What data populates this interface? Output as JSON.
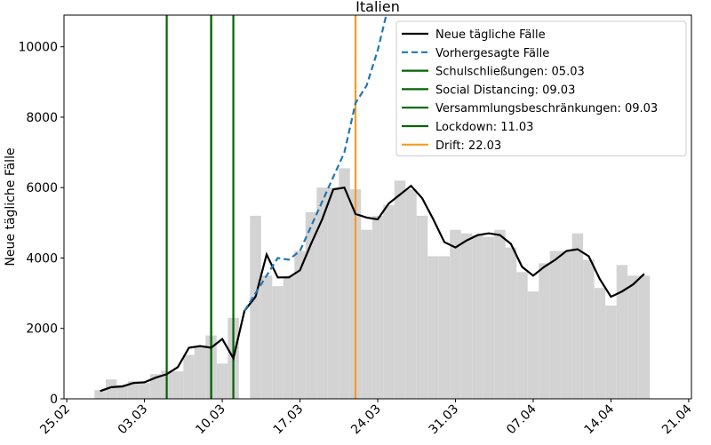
{
  "chart_data": {
    "type": "bar_line",
    "title": "Italien",
    "ylabel": "Neue tägliche Fälle",
    "categories": [
      "25.02",
      "26.02",
      "27.02",
      "28.02",
      "29.02",
      "01.03",
      "02.03",
      "03.03",
      "04.03",
      "05.03",
      "06.03",
      "07.03",
      "08.03",
      "09.03",
      "10.03",
      "11.03",
      "12.03",
      "13.03",
      "14.03",
      "15.03",
      "16.03",
      "17.03",
      "18.03",
      "19.03",
      "20.03",
      "21.03",
      "22.03",
      "23.03",
      "24.03",
      "25.03",
      "26.03",
      "27.03",
      "28.03",
      "29.03",
      "30.03",
      "31.03",
      "01.04",
      "02.04",
      "03.04",
      "04.04",
      "05.04",
      "06.04",
      "07.04",
      "08.04",
      "09.04",
      "10.04",
      "11.04",
      "12.04",
      "13.04",
      "14.04",
      "15.04",
      "16.04",
      "17.04",
      "18.04",
      "19.04",
      "20.04",
      "21.04"
    ],
    "bars": {
      "color": "#d3d3d3",
      "values": [
        null,
        null,
        null,
        250,
        550,
        400,
        500,
        450,
        700,
        800,
        780,
        1250,
        1500,
        1800,
        1000,
        2300,
        null,
        5200,
        3500,
        3200,
        3500,
        4200,
        5300,
        6000,
        6000,
        6550,
        5950,
        4800,
        5200,
        5500,
        6200,
        5950,
        5200,
        4050,
        4050,
        4800,
        4700,
        4650,
        4600,
        4800,
        4300,
        3600,
        3050,
        3850,
        4200,
        4200,
        4700,
        3950,
        3150,
        2650,
        3800,
        3500,
        3500,
        null,
        null,
        null,
        null
      ]
    },
    "series": [
      {
        "name": "Neue tägliche Fälle",
        "color": "#000000",
        "dash": false,
        "values": [
          null,
          null,
          null,
          220,
          330,
          350,
          450,
          470,
          600,
          700,
          900,
          1450,
          1500,
          1450,
          1700,
          1150,
          2500,
          2900,
          4100,
          3450,
          3450,
          3650,
          4400,
          5100,
          5950,
          6000,
          5250,
          5150,
          5100,
          5550,
          5800,
          6050,
          5700,
          5100,
          4450,
          4300,
          4500,
          4650,
          4700,
          4650,
          4400,
          3750,
          3500,
          3750,
          3950,
          4200,
          4250,
          4050,
          3400,
          2900,
          3050,
          3250,
          3550,
          null,
          null,
          null,
          null
        ]
      },
      {
        "name": "Vorhergesagte Fälle",
        "color": "#1f77b4",
        "dash": true,
        "values": [
          null,
          null,
          null,
          null,
          null,
          null,
          null,
          null,
          null,
          null,
          null,
          null,
          null,
          null,
          null,
          null,
          2500,
          3000,
          3500,
          4000,
          3950,
          4200,
          4900,
          5600,
          6300,
          7000,
          8400,
          8900,
          9900,
          11200,
          null,
          null,
          null,
          null,
          null,
          null,
          null,
          null,
          null,
          null,
          null,
          null,
          null,
          null,
          null,
          null,
          null,
          null,
          null,
          null,
          null,
          null,
          null,
          null,
          null,
          null,
          null
        ]
      }
    ],
    "events": [
      {
        "name": "Schulschließungen: 05.03",
        "x": "05.03",
        "color": "#006400"
      },
      {
        "name": "Social Distancing: 09.03",
        "x": "09.03",
        "color": "#006400"
      },
      {
        "name": "Versammlungsbeschränkungen: 09.03",
        "x": "09.03",
        "color": "#006400"
      },
      {
        "name": "Lockdown: 11.03",
        "x": "11.03",
        "color": "#006400"
      },
      {
        "name": "Drift: 22.03",
        "x": "22.03",
        "color": "#f59b23"
      }
    ],
    "xticks": [
      "25.02",
      "03.03",
      "10.03",
      "17.03",
      "24.03",
      "31.03",
      "07.04",
      "14.04",
      "21.04"
    ],
    "ylim": [
      0,
      10900
    ],
    "yticks": [
      0,
      2000,
      4000,
      6000,
      8000,
      10000
    ],
    "legend": "upper right"
  }
}
